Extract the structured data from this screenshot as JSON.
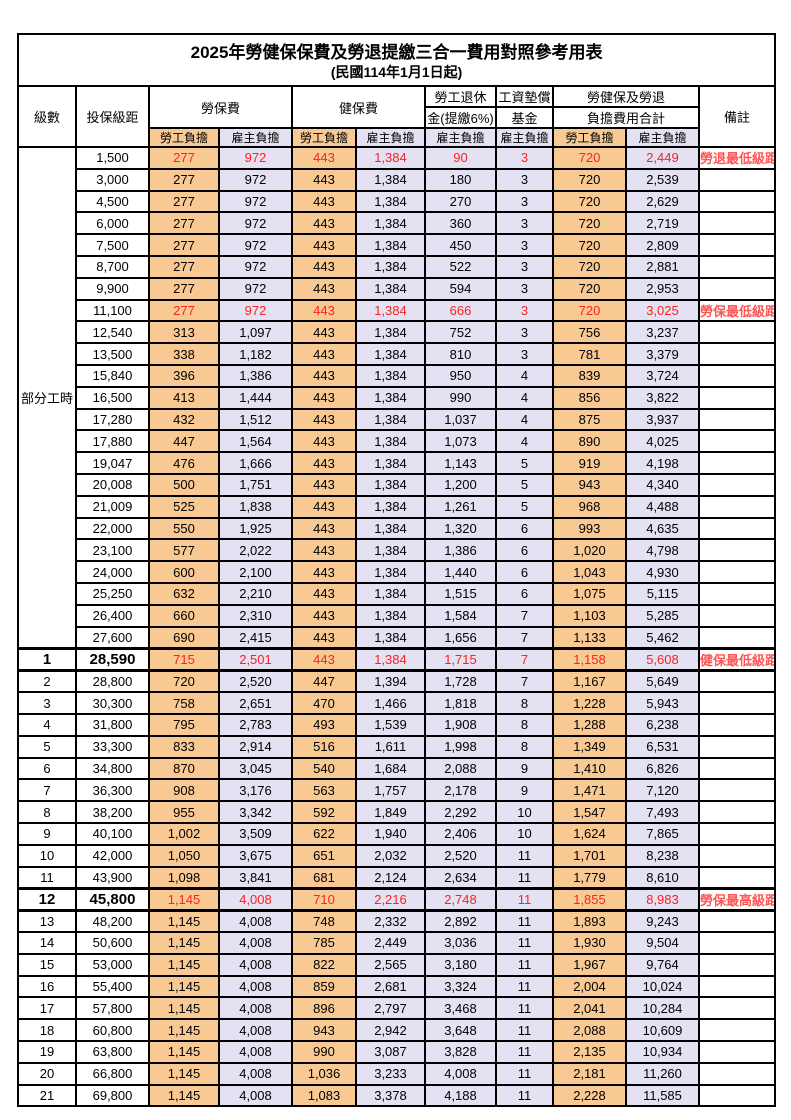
{
  "title_line1": "2025年勞健保保費及勞退提繳三合一費用對照參考用表",
  "title_line2": "(民國114年1月1日起)",
  "header": {
    "level": "級數",
    "bracket": "投保級距",
    "labor_ins": "勞保費",
    "health_ins": "健保費",
    "pension_line1": "勞工退休",
    "pension_line2": "金(提繳6%)",
    "wage_fund_line1": "工資墊償",
    "wage_fund_line2": "基金",
    "total_line1": "勞健保及勞退",
    "total_line2": "負擔費用合計",
    "remark": "備註",
    "employee_share": "勞工負擔",
    "employer_share": "雇主負擔"
  },
  "part_time": {
    "label": "部分工時",
    "rowspan": 23
  },
  "colors": {
    "employee_fill": "#f9c993",
    "employer_fill": "#e3e1f2",
    "highlight_red": "#fb2222",
    "remark_red": "#ff5555",
    "border": "#000000"
  },
  "rows": [
    {
      "lv": "",
      "br": "1,500",
      "a": "277",
      "b": "972",
      "c": "443",
      "d": "1,384",
      "e": "90",
      "f": "3",
      "g": "720",
      "h": "2,449",
      "rm": "勞退最低級距",
      "red": true,
      "bold": false
    },
    {
      "lv": "",
      "br": "3,000",
      "a": "277",
      "b": "972",
      "c": "443",
      "d": "1,384",
      "e": "180",
      "f": "3",
      "g": "720",
      "h": "2,539",
      "rm": "",
      "red": false,
      "bold": false
    },
    {
      "lv": "",
      "br": "4,500",
      "a": "277",
      "b": "972",
      "c": "443",
      "d": "1,384",
      "e": "270",
      "f": "3",
      "g": "720",
      "h": "2,629",
      "rm": "",
      "red": false,
      "bold": false
    },
    {
      "lv": "",
      "br": "6,000",
      "a": "277",
      "b": "972",
      "c": "443",
      "d": "1,384",
      "e": "360",
      "f": "3",
      "g": "720",
      "h": "2,719",
      "rm": "",
      "red": false,
      "bold": false
    },
    {
      "lv": "",
      "br": "7,500",
      "a": "277",
      "b": "972",
      "c": "443",
      "d": "1,384",
      "e": "450",
      "f": "3",
      "g": "720",
      "h": "2,809",
      "rm": "",
      "red": false,
      "bold": false
    },
    {
      "lv": "",
      "br": "8,700",
      "a": "277",
      "b": "972",
      "c": "443",
      "d": "1,384",
      "e": "522",
      "f": "3",
      "g": "720",
      "h": "2,881",
      "rm": "",
      "red": false,
      "bold": false
    },
    {
      "lv": "",
      "br": "9,900",
      "a": "277",
      "b": "972",
      "c": "443",
      "d": "1,384",
      "e": "594",
      "f": "3",
      "g": "720",
      "h": "2,953",
      "rm": "",
      "red": false,
      "bold": false
    },
    {
      "lv": "",
      "br": "11,100",
      "a": "277",
      "b": "972",
      "c": "443",
      "d": "1,384",
      "e": "666",
      "f": "3",
      "g": "720",
      "h": "3,025",
      "rm": "勞保最低級距",
      "red": true,
      "bold": false
    },
    {
      "lv": "",
      "br": "12,540",
      "a": "313",
      "b": "1,097",
      "c": "443",
      "d": "1,384",
      "e": "752",
      "f": "3",
      "g": "756",
      "h": "3,237",
      "rm": "",
      "red": false,
      "bold": false
    },
    {
      "lv": "",
      "br": "13,500",
      "a": "338",
      "b": "1,182",
      "c": "443",
      "d": "1,384",
      "e": "810",
      "f": "3",
      "g": "781",
      "h": "3,379",
      "rm": "",
      "red": false,
      "bold": false
    },
    {
      "lv": "",
      "br": "15,840",
      "a": "396",
      "b": "1,386",
      "c": "443",
      "d": "1,384",
      "e": "950",
      "f": "4",
      "g": "839",
      "h": "3,724",
      "rm": "",
      "red": false,
      "bold": false
    },
    {
      "lv": "",
      "br": "16,500",
      "a": "413",
      "b": "1,444",
      "c": "443",
      "d": "1,384",
      "e": "990",
      "f": "4",
      "g": "856",
      "h": "3,822",
      "rm": "",
      "red": false,
      "bold": false
    },
    {
      "lv": "",
      "br": "17,280",
      "a": "432",
      "b": "1,512",
      "c": "443",
      "d": "1,384",
      "e": "1,037",
      "f": "4",
      "g": "875",
      "h": "3,937",
      "rm": "",
      "red": false,
      "bold": false
    },
    {
      "lv": "",
      "br": "17,880",
      "a": "447",
      "b": "1,564",
      "c": "443",
      "d": "1,384",
      "e": "1,073",
      "f": "4",
      "g": "890",
      "h": "4,025",
      "rm": "",
      "red": false,
      "bold": false
    },
    {
      "lv": "",
      "br": "19,047",
      "a": "476",
      "b": "1,666",
      "c": "443",
      "d": "1,384",
      "e": "1,143",
      "f": "5",
      "g": "919",
      "h": "4,198",
      "rm": "",
      "red": false,
      "bold": false
    },
    {
      "lv": "",
      "br": "20,008",
      "a": "500",
      "b": "1,751",
      "c": "443",
      "d": "1,384",
      "e": "1,200",
      "f": "5",
      "g": "943",
      "h": "4,340",
      "rm": "",
      "red": false,
      "bold": false
    },
    {
      "lv": "",
      "br": "21,009",
      "a": "525",
      "b": "1,838",
      "c": "443",
      "d": "1,384",
      "e": "1,261",
      "f": "5",
      "g": "968",
      "h": "4,488",
      "rm": "",
      "red": false,
      "bold": false
    },
    {
      "lv": "",
      "br": "22,000",
      "a": "550",
      "b": "1,925",
      "c": "443",
      "d": "1,384",
      "e": "1,320",
      "f": "6",
      "g": "993",
      "h": "4,635",
      "rm": "",
      "red": false,
      "bold": false
    },
    {
      "lv": "",
      "br": "23,100",
      "a": "577",
      "b": "2,022",
      "c": "443",
      "d": "1,384",
      "e": "1,386",
      "f": "6",
      "g": "1,020",
      "h": "4,798",
      "rm": "",
      "red": false,
      "bold": false
    },
    {
      "lv": "",
      "br": "24,000",
      "a": "600",
      "b": "2,100",
      "c": "443",
      "d": "1,384",
      "e": "1,440",
      "f": "6",
      "g": "1,043",
      "h": "4,930",
      "rm": "",
      "red": false,
      "bold": false
    },
    {
      "lv": "",
      "br": "25,250",
      "a": "632",
      "b": "2,210",
      "c": "443",
      "d": "1,384",
      "e": "1,515",
      "f": "6",
      "g": "1,075",
      "h": "5,115",
      "rm": "",
      "red": false,
      "bold": false
    },
    {
      "lv": "",
      "br": "26,400",
      "a": "660",
      "b": "2,310",
      "c": "443",
      "d": "1,384",
      "e": "1,584",
      "f": "7",
      "g": "1,103",
      "h": "5,285",
      "rm": "",
      "red": false,
      "bold": false
    },
    {
      "lv": "",
      "br": "27,600",
      "a": "690",
      "b": "2,415",
      "c": "443",
      "d": "1,384",
      "e": "1,656",
      "f": "7",
      "g": "1,133",
      "h": "5,462",
      "rm": "",
      "red": false,
      "bold": false
    },
    {
      "lv": "1",
      "br": "28,590",
      "a": "715",
      "b": "2,501",
      "c": "443",
      "d": "1,384",
      "e": "1,715",
      "f": "7",
      "g": "1,158",
      "h": "5,608",
      "rm": "健保最低級距",
      "red": true,
      "bold": true
    },
    {
      "lv": "2",
      "br": "28,800",
      "a": "720",
      "b": "2,520",
      "c": "447",
      "d": "1,394",
      "e": "1,728",
      "f": "7",
      "g": "1,167",
      "h": "5,649",
      "rm": "",
      "red": false,
      "bold": false
    },
    {
      "lv": "3",
      "br": "30,300",
      "a": "758",
      "b": "2,651",
      "c": "470",
      "d": "1,466",
      "e": "1,818",
      "f": "8",
      "g": "1,228",
      "h": "5,943",
      "rm": "",
      "red": false,
      "bold": false
    },
    {
      "lv": "4",
      "br": "31,800",
      "a": "795",
      "b": "2,783",
      "c": "493",
      "d": "1,539",
      "e": "1,908",
      "f": "8",
      "g": "1,288",
      "h": "6,238",
      "rm": "",
      "red": false,
      "bold": false
    },
    {
      "lv": "5",
      "br": "33,300",
      "a": "833",
      "b": "2,914",
      "c": "516",
      "d": "1,611",
      "e": "1,998",
      "f": "8",
      "g": "1,349",
      "h": "6,531",
      "rm": "",
      "red": false,
      "bold": false
    },
    {
      "lv": "6",
      "br": "34,800",
      "a": "870",
      "b": "3,045",
      "c": "540",
      "d": "1,684",
      "e": "2,088",
      "f": "9",
      "g": "1,410",
      "h": "6,826",
      "rm": "",
      "red": false,
      "bold": false
    },
    {
      "lv": "7",
      "br": "36,300",
      "a": "908",
      "b": "3,176",
      "c": "563",
      "d": "1,757",
      "e": "2,178",
      "f": "9",
      "g": "1,471",
      "h": "7,120",
      "rm": "",
      "red": false,
      "bold": false
    },
    {
      "lv": "8",
      "br": "38,200",
      "a": "955",
      "b": "3,342",
      "c": "592",
      "d": "1,849",
      "e": "2,292",
      "f": "10",
      "g": "1,547",
      "h": "7,493",
      "rm": "",
      "red": false,
      "bold": false
    },
    {
      "lv": "9",
      "br": "40,100",
      "a": "1,002",
      "b": "3,509",
      "c": "622",
      "d": "1,940",
      "e": "2,406",
      "f": "10",
      "g": "1,624",
      "h": "7,865",
      "rm": "",
      "red": false,
      "bold": false
    },
    {
      "lv": "10",
      "br": "42,000",
      "a": "1,050",
      "b": "3,675",
      "c": "651",
      "d": "2,032",
      "e": "2,520",
      "f": "11",
      "g": "1,701",
      "h": "8,238",
      "rm": "",
      "red": false,
      "bold": false
    },
    {
      "lv": "11",
      "br": "43,900",
      "a": "1,098",
      "b": "3,841",
      "c": "681",
      "d": "2,124",
      "e": "2,634",
      "f": "11",
      "g": "1,779",
      "h": "8,610",
      "rm": "",
      "red": false,
      "bold": false
    },
    {
      "lv": "12",
      "br": "45,800",
      "a": "1,145",
      "b": "4,008",
      "c": "710",
      "d": "2,216",
      "e": "2,748",
      "f": "11",
      "g": "1,855",
      "h": "8,983",
      "rm": "勞保最高級距",
      "red": true,
      "bold": true
    },
    {
      "lv": "13",
      "br": "48,200",
      "a": "1,145",
      "b": "4,008",
      "c": "748",
      "d": "2,332",
      "e": "2,892",
      "f": "11",
      "g": "1,893",
      "h": "9,243",
      "rm": "",
      "red": false,
      "bold": false
    },
    {
      "lv": "14",
      "br": "50,600",
      "a": "1,145",
      "b": "4,008",
      "c": "785",
      "d": "2,449",
      "e": "3,036",
      "f": "11",
      "g": "1,930",
      "h": "9,504",
      "rm": "",
      "red": false,
      "bold": false
    },
    {
      "lv": "15",
      "br": "53,000",
      "a": "1,145",
      "b": "4,008",
      "c": "822",
      "d": "2,565",
      "e": "3,180",
      "f": "11",
      "g": "1,967",
      "h": "9,764",
      "rm": "",
      "red": false,
      "bold": false
    },
    {
      "lv": "16",
      "br": "55,400",
      "a": "1,145",
      "b": "4,008",
      "c": "859",
      "d": "2,681",
      "e": "3,324",
      "f": "11",
      "g": "2,004",
      "h": "10,024",
      "rm": "",
      "red": false,
      "bold": false
    },
    {
      "lv": "17",
      "br": "57,800",
      "a": "1,145",
      "b": "4,008",
      "c": "896",
      "d": "2,797",
      "e": "3,468",
      "f": "11",
      "g": "2,041",
      "h": "10,284",
      "rm": "",
      "red": false,
      "bold": false
    },
    {
      "lv": "18",
      "br": "60,800",
      "a": "1,145",
      "b": "4,008",
      "c": "943",
      "d": "2,942",
      "e": "3,648",
      "f": "11",
      "g": "2,088",
      "h": "10,609",
      "rm": "",
      "red": false,
      "bold": false
    },
    {
      "lv": "19",
      "br": "63,800",
      "a": "1,145",
      "b": "4,008",
      "c": "990",
      "d": "3,087",
      "e": "3,828",
      "f": "11",
      "g": "2,135",
      "h": "10,934",
      "rm": "",
      "red": false,
      "bold": false
    },
    {
      "lv": "20",
      "br": "66,800",
      "a": "1,145",
      "b": "4,008",
      "c": "1,036",
      "d": "3,233",
      "e": "4,008",
      "f": "11",
      "g": "2,181",
      "h": "11,260",
      "rm": "",
      "red": false,
      "bold": false
    },
    {
      "lv": "21",
      "br": "69,800",
      "a": "1,145",
      "b": "4,008",
      "c": "1,083",
      "d": "3,378",
      "e": "4,188",
      "f": "11",
      "g": "2,228",
      "h": "11,585",
      "rm": "",
      "red": false,
      "bold": false
    }
  ]
}
